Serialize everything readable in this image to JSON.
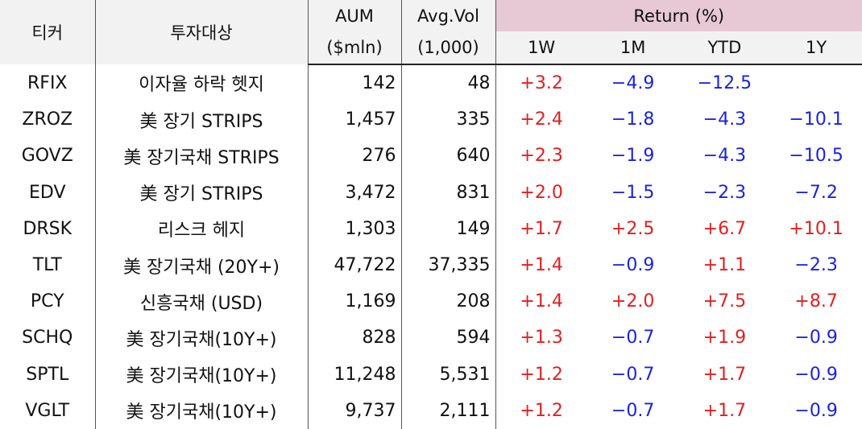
{
  "headers": {
    "ticker": "티커",
    "target": "투자대상",
    "aum_top": "AUM",
    "aum_bottom": "($mln)",
    "vol_top": "Avg.Vol",
    "vol_bottom": "(1,000)",
    "return_group": "Return (%)",
    "ret_1w": "1W",
    "ret_1m": "1M",
    "ret_ytd": "YTD",
    "ret_1y": "1Y"
  },
  "colors": {
    "positive": "#e02020",
    "negative": "#1a22e0",
    "return_header_bg": "#e7c9d6",
    "header_bg": "#f2f2f2"
  },
  "rows": [
    {
      "ticker": "RFIX",
      "target": "이자율 하락 헷지",
      "aum": "142",
      "vol": "48",
      "w1": "+3.2",
      "m1": "−4.9",
      "ytd": "−12.5",
      "y1": ""
    },
    {
      "ticker": "ZROZ",
      "target": "美 장기 STRIPS",
      "aum": "1,457",
      "vol": "335",
      "w1": "+2.4",
      "m1": "−1.8",
      "ytd": "−4.3",
      "y1": "−10.1"
    },
    {
      "ticker": "GOVZ",
      "target": "美 장기국채 STRIPS",
      "aum": "276",
      "vol": "640",
      "w1": "+2.3",
      "m1": "−1.9",
      "ytd": "−4.3",
      "y1": "−10.5"
    },
    {
      "ticker": "EDV",
      "target": "美 장기 STRIPS",
      "aum": "3,472",
      "vol": "831",
      "w1": "+2.0",
      "m1": "−1.5",
      "ytd": "−2.3",
      "y1": "−7.2"
    },
    {
      "ticker": "DRSK",
      "target": "리스크 헤지",
      "aum": "1,303",
      "vol": "149",
      "w1": "+1.7",
      "m1": "+2.5",
      "ytd": "+6.7",
      "y1": "+10.1"
    },
    {
      "ticker": "TLT",
      "target": "美 장기국채 (20Y+)",
      "aum": "47,722",
      "vol": "37,335",
      "w1": "+1.4",
      "m1": "−0.9",
      "ytd": "+1.1",
      "y1": "−2.3"
    },
    {
      "ticker": "PCY",
      "target": "신흥국채 (USD)",
      "aum": "1,169",
      "vol": "208",
      "w1": "+1.4",
      "m1": "+2.0",
      "ytd": "+7.5",
      "y1": "+8.7"
    },
    {
      "ticker": "SCHQ",
      "target": "美 장기국채(10Y+)",
      "aum": "828",
      "vol": "594",
      "w1": "+1.3",
      "m1": "−0.7",
      "ytd": "+1.9",
      "y1": "−0.9"
    },
    {
      "ticker": "SPTL",
      "target": "美 장기국채(10Y+)",
      "aum": "11,248",
      "vol": "5,531",
      "w1": "+1.2",
      "m1": "−0.7",
      "ytd": "+1.7",
      "y1": "−0.9"
    },
    {
      "ticker": "VGLT",
      "target": "美 장기국채(10Y+)",
      "aum": "9,737",
      "vol": "2,111",
      "w1": "+1.2",
      "m1": "−0.7",
      "ytd": "+1.7",
      "y1": "−0.9"
    }
  ]
}
